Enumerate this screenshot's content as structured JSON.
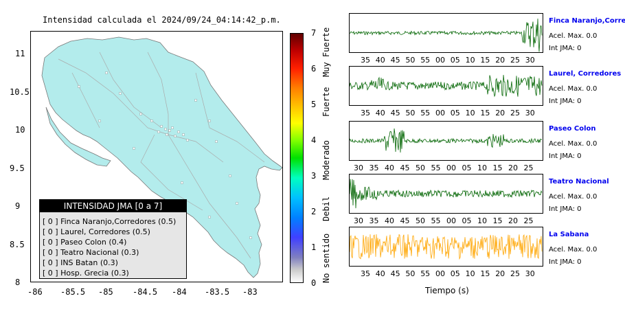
{
  "map": {
    "title": "Intensidad calculada el 2024/09/24_04:14:42_p.m.",
    "x_ticks": [
      "-86",
      "-85.5",
      "-85",
      "-84.5",
      "-84",
      "-83.5",
      "-83"
    ],
    "y_ticks": [
      "11",
      "10.5",
      "10",
      "9.5",
      "9",
      "8.5",
      "8"
    ],
    "land_color": "#b3ecec",
    "legend": {
      "title": "INTENSIDAD JMA [0 a 7]",
      "entries": [
        "[ 0 ]  Finca Naranjo,Corredores (0.5)",
        "[ 0 ]  Laurel, Corredores (0.5)",
        "[ 0 ]  Paseo Colon (0.4)",
        "[ 0 ]  Teatro Nacional (0.3)",
        "[ 0 ]  INS Batan (0.3)",
        "[ 0 ]  Hosp. Grecia (0.3)"
      ]
    }
  },
  "colorbar": {
    "ticks": [
      "7",
      "6",
      "5",
      "4",
      "3",
      "2",
      "1",
      "0"
    ],
    "categories": [
      "Muy Fuerte",
      "Fuerte",
      "Moderado",
      "Debil",
      "No sentido"
    ]
  },
  "traces": [
    {
      "name": "Finca Naranjo,Corredor",
      "acel": "Acel. Max. 0.0",
      "int": "Int JMA: 0",
      "color": "#006400",
      "ticks": [
        "35",
        "40",
        "45",
        "50",
        "55",
        "00",
        "05",
        "10",
        "15",
        "20",
        "25",
        "30"
      ]
    },
    {
      "name": "Laurel, Corredores",
      "acel": "Acel. Max. 0.0",
      "int": "Int JMA: 0",
      "color": "#006400",
      "ticks": [
        "35",
        "40",
        "45",
        "50",
        "55",
        "00",
        "05",
        "10",
        "15",
        "20",
        "25",
        "30"
      ]
    },
    {
      "name": "Paseo Colon",
      "acel": "Acel. Max. 0.0",
      "int": "Int JMA: 0",
      "color": "#006400",
      "ticks": [
        "30",
        "35",
        "40",
        "45",
        "50",
        "55",
        "00",
        "05",
        "10",
        "15",
        "20",
        "25"
      ]
    },
    {
      "name": "Teatro Nacional",
      "acel": "Acel. Max. 0.0",
      "int": "Int JMA: 0",
      "color": "#006400",
      "ticks": [
        "30",
        "35",
        "40",
        "45",
        "50",
        "55",
        "00",
        "05",
        "10",
        "15",
        "20",
        "25"
      ]
    },
    {
      "name": "La Sabana",
      "acel": "Acel. Max. 0.0",
      "int": "Int JMA: 0",
      "color": "#ffa500",
      "ticks": [
        "35",
        "40",
        "45",
        "50",
        "55",
        "00",
        "05",
        "10",
        "15",
        "20",
        "25",
        "30"
      ]
    }
  ],
  "xlabel": "Tiempo (s)",
  "chart_data": {
    "type": "heatmap",
    "title": "Intensidad calculada el 2024/09/24_04:14:42_p.m.",
    "xlim": [
      -86,
      -82.5
    ],
    "ylim": [
      8,
      11.3
    ],
    "colorbar_range": [
      0,
      7
    ],
    "stations": [
      {
        "name": "Finca Naranjo,Corredores",
        "jma": 0,
        "intensity": 0.5
      },
      {
        "name": "Laurel, Corredores",
        "jma": 0,
        "intensity": 0.5
      },
      {
        "name": "Paseo Colon",
        "jma": 0,
        "intensity": 0.4
      },
      {
        "name": "Teatro Nacional",
        "jma": 0,
        "intensity": 0.3
      },
      {
        "name": "INS Batan",
        "jma": 0,
        "intensity": 0.3
      },
      {
        "name": "Hosp. Grecia",
        "jma": 0,
        "intensity": 0.3
      }
    ]
  }
}
